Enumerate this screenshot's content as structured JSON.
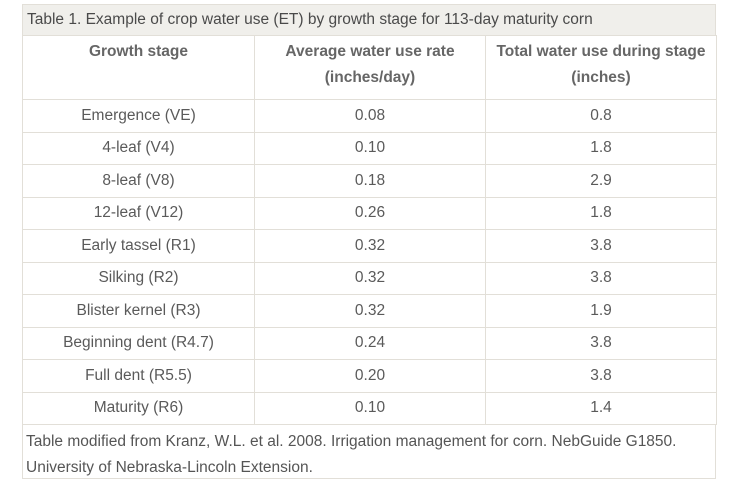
{
  "table": {
    "caption": "Table 1. Example of crop water use (ET) by growth stage for 113-day maturity corn",
    "headers": [
      {
        "line1": "Growth stage",
        "line2": ""
      },
      {
        "line1": "Average water use rate",
        "line2": "(inches/day)"
      },
      {
        "line1": "Total water use during stage",
        "line2": "(inches)"
      }
    ],
    "rows": [
      [
        "Emergence (VE)",
        "0.08",
        "0.8"
      ],
      [
        "4-leaf (V4)",
        "0.10",
        "1.8"
      ],
      [
        "8-leaf (V8)",
        "0.18",
        "2.9"
      ],
      [
        "12-leaf (V12)",
        "0.26",
        "1.8"
      ],
      [
        "Early tassel (R1)",
        "0.32",
        "3.8"
      ],
      [
        "Silking (R2)",
        "0.32",
        "3.8"
      ],
      [
        "Blister kernel (R3)",
        "0.32",
        "1.9"
      ],
      [
        "Beginning dent (R4.7)",
        "0.24",
        "3.8"
      ],
      [
        "Full dent (R5.5)",
        "0.20",
        "3.8"
      ],
      [
        "Maturity (R6)",
        "0.10",
        "1.4"
      ]
    ],
    "footnote_line1": "Table modified from Kranz, W.L. et al. 2008. Irrigation management for corn. NebGuide G1850.",
    "footnote_line2": "University of Nebraska-Lincoln Extension."
  }
}
